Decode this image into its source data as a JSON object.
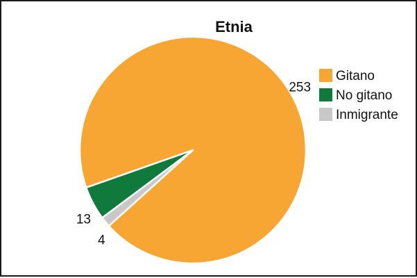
{
  "chart_data": {
    "type": "pie",
    "title": "Etnia",
    "categories": [
      "Gitano",
      "No gitano",
      "Inmigrante"
    ],
    "values": [
      253,
      13,
      4
    ],
    "colors": [
      "#f7a533",
      "#0f7a3c",
      "#c8c8c8"
    ],
    "legend_position": "top-right",
    "data_labels": [
      "253",
      "13",
      "4"
    ]
  }
}
